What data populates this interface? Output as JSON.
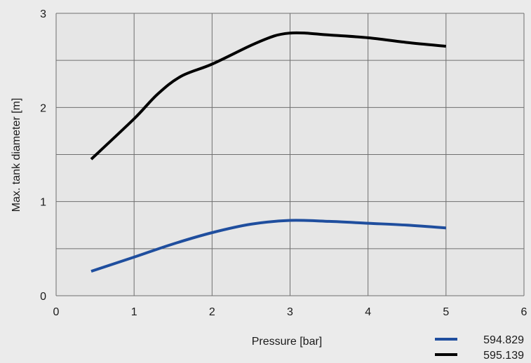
{
  "chart_data": {
    "type": "line",
    "xlabel": "Pressure [bar]",
    "ylabel": "Max. tank diameter [m]",
    "xlim": [
      0,
      6
    ],
    "ylim": [
      0,
      3
    ],
    "x_ticks": [
      "0",
      "1",
      "2",
      "3",
      "4",
      "5",
      "6"
    ],
    "y_ticks": [
      "0",
      "1",
      "2",
      "3"
    ],
    "x_tick_values": [
      0,
      1,
      2,
      3,
      4,
      5,
      6
    ],
    "y_tick_values": [
      0,
      1,
      2,
      3
    ],
    "y_minor_gridlines": [
      0.5,
      1.5,
      2.5
    ],
    "grid": true,
    "legend_position": "bottom-right",
    "series": [
      {
        "name": "594.829",
        "color": "#1f4e9e",
        "x": [
          0.45,
          1.0,
          1.5,
          2.0,
          2.5,
          3.0,
          3.5,
          4.0,
          4.5,
          5.0
        ],
        "y": [
          0.26,
          0.41,
          0.55,
          0.67,
          0.76,
          0.8,
          0.79,
          0.77,
          0.75,
          0.72
        ]
      },
      {
        "name": "595.139",
        "color": "#000000",
        "x": [
          0.45,
          1.0,
          1.3,
          1.6,
          2.0,
          2.5,
          2.8,
          3.0,
          3.2,
          3.5,
          4.0,
          4.5,
          5.0
        ],
        "y": [
          1.45,
          1.88,
          2.14,
          2.33,
          2.46,
          2.66,
          2.76,
          2.79,
          2.79,
          2.77,
          2.74,
          2.69,
          2.65
        ]
      }
    ]
  }
}
